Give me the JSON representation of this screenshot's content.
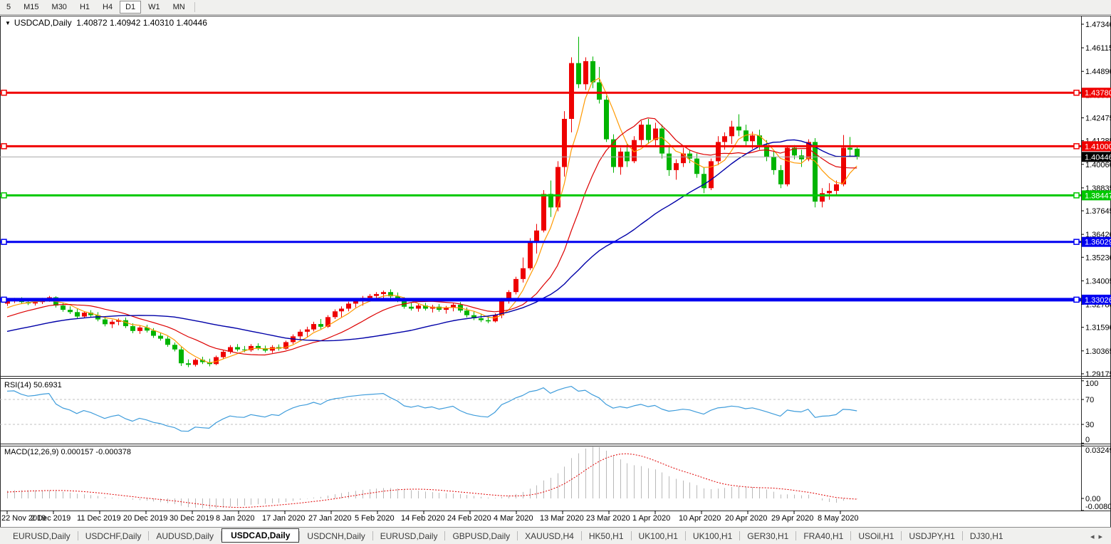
{
  "toolbar": {
    "items": [
      {
        "label": "5",
        "active": false
      },
      {
        "label": "M15",
        "active": false
      },
      {
        "label": "M30",
        "active": false
      },
      {
        "label": "H1",
        "active": false
      },
      {
        "label": "H4",
        "active": false
      },
      {
        "label": "D1",
        "active": true
      },
      {
        "label": "W1",
        "active": false
      },
      {
        "label": "MN",
        "active": false
      }
    ]
  },
  "header": {
    "collapse_icon": "▼",
    "symbol": "USDCAD,Daily",
    "open": "1.40872",
    "high": "1.40942",
    "low": "1.40310",
    "close": "1.40446"
  },
  "indicators": {
    "rsi_label": "RSI(14) 50.6931",
    "macd_label": "MACD(12,26,9) 0.000157 -0.000378"
  },
  "tabbar": {
    "scroll_left": "◂",
    "scroll_right": "▸",
    "tabs": [
      {
        "label": "EURUSD,Daily",
        "active": false
      },
      {
        "label": "USDCHF,Daily",
        "active": false
      },
      {
        "label": "AUDUSD,Daily",
        "active": false
      },
      {
        "label": "USDCAD,Daily",
        "active": true
      },
      {
        "label": "USDCNH,Daily",
        "active": false
      },
      {
        "label": "EURUSD,Daily",
        "active": false
      },
      {
        "label": "GBPUSD,Daily",
        "active": false
      },
      {
        "label": "XAUUSD,H4",
        "active": false
      },
      {
        "label": "HK50,H1",
        "active": false
      },
      {
        "label": "UK100,H1",
        "active": false
      },
      {
        "label": "UK100,H1",
        "active": false
      },
      {
        "label": "GER30,H1",
        "active": false
      },
      {
        "label": "FRA40,H1",
        "active": false
      },
      {
        "label": "USOil,H1",
        "active": false
      },
      {
        "label": "USDJPY,H1",
        "active": false
      },
      {
        "label": "DJ30,H1",
        "active": false
      }
    ]
  },
  "chart_data": {
    "type": "candlestick",
    "symbol": "USDCAD",
    "timeframe": "Daily",
    "colors": {
      "up": "#ee0000",
      "down": "#00b400",
      "ma_fast": "#ff9900",
      "ma_mid": "#dd0000",
      "ma_slow": "#0000a8",
      "rsi_line": "#3e9cdb",
      "macd_hist": "#b9b9b9",
      "macd_signal": "#e00000",
      "frame": "#2b2b2b",
      "current_line": "#a8a8a8",
      "level_dash": "#c0c0c0"
    },
    "price_axis": {
      "ticks": [
        "1.47340",
        "1.46115",
        "1.44890",
        "1.43665",
        "1.42475",
        "1.41285",
        "1.40060",
        "1.38835",
        "1.37645",
        "1.36420",
        "1.35230",
        "1.34005",
        "1.32780",
        "1.31590",
        "1.30365",
        "1.29175"
      ],
      "top_price": 1.47784,
      "bottom_price": 1.29066
    },
    "h_lines": [
      {
        "label": "1.43780",
        "price": 1.4378,
        "color": "#f00000",
        "width": 3
      },
      {
        "label": "1.41000",
        "price": 1.41,
        "color": "#f00000",
        "width": 3
      },
      {
        "label": "1.38447",
        "price": 1.38447,
        "color": "#00c800",
        "width": 3
      },
      {
        "label": "1.36029",
        "price": 1.36029,
        "color": "#0000f0",
        "width": 3
      },
      {
        "label": "1.33026",
        "price": 1.33026,
        "color": "#0000f0",
        "width": 5
      }
    ],
    "current_price": {
      "label": "1.40446",
      "price": 1.40446
    },
    "date_ticks": [
      "22 Nov 2019",
      "2 Dec 2019",
      "11 Dec 2019",
      "20 Dec 2019",
      "30 Dec 2019",
      "8 Jan 2020",
      "17 Jan 2020",
      "27 Jan 2020",
      "5 Feb 2020",
      "14 Feb 2020",
      "24 Feb 2020",
      "4 Mar 2020",
      "13 Mar 2020",
      "23 Mar 2020",
      "1 Apr 2020",
      "10 Apr 2020",
      "20 Apr 2020",
      "29 Apr 2020",
      "8 May 2020"
    ],
    "moving_averages": [
      {
        "period": 5,
        "color": "#ff9900",
        "width": 1.2
      },
      {
        "period": 13,
        "color": "#dd0000",
        "width": 1.2
      },
      {
        "period": 34,
        "color": "#0000a8",
        "width": 1.4
      }
    ],
    "rsi": {
      "period": 14,
      "levels": [
        70,
        30
      ],
      "axis_labels": [
        "100",
        "70",
        "30",
        "0"
      ],
      "axis_values": [
        100,
        70,
        30,
        0
      ],
      "current": "50.6931"
    },
    "macd": {
      "fast": 12,
      "slow": 26,
      "signal": 9,
      "axis_labels": [
        "0.032493",
        "0.00",
        "-0.008086"
      ],
      "axis_values": [
        0.032493,
        0,
        -0.008086
      ],
      "current_main": "0.000157",
      "current_signal": "-0.000378"
    },
    "pre_closes": [
      1.304,
      1.3028,
      1.3035,
      1.3046,
      1.303,
      1.3022,
      1.3038,
      1.305,
      1.3042,
      1.303,
      1.3025,
      1.304,
      1.3052,
      1.3038,
      1.3028,
      1.3045,
      1.3035,
      1.3026,
      1.304,
      1.3055,
      1.3042,
      1.303,
      1.3048,
      1.3036,
      1.3028,
      1.3044,
      1.3052,
      1.304,
      1.3032,
      1.3045,
      1.3038,
      1.305,
      1.306,
      1.3048,
      1.3042,
      1.307,
      1.3095,
      1.311,
      1.3098,
      1.3122,
      1.3135,
      1.312,
      1.3108,
      1.313,
      1.3145,
      1.3132,
      1.315,
      1.3138,
      1.3155,
      1.3148,
      1.316,
      1.3175,
      1.319,
      1.3205,
      1.3215,
      1.3228,
      1.3238,
      1.3248,
      1.3256,
      1.3262
    ],
    "candles": [
      [
        1.3282,
        1.3305,
        1.327,
        1.3297
      ],
      [
        1.3297,
        1.3312,
        1.3285,
        1.3302
      ],
      [
        1.3302,
        1.3315,
        1.3282,
        1.329
      ],
      [
        1.329,
        1.3302,
        1.3275,
        1.3283
      ],
      [
        1.3283,
        1.3296,
        1.3272,
        1.329
      ],
      [
        1.329,
        1.3312,
        1.328,
        1.3306
      ],
      [
        1.3306,
        1.3322,
        1.3292,
        1.3315
      ],
      [
        1.3315,
        1.332,
        1.3262,
        1.3272
      ],
      [
        1.3272,
        1.3288,
        1.324,
        1.325
      ],
      [
        1.325,
        1.3268,
        1.3228,
        1.3238
      ],
      [
        1.3238,
        1.3255,
        1.3205,
        1.3215
      ],
      [
        1.3215,
        1.3242,
        1.3208,
        1.3235
      ],
      [
        1.3235,
        1.3248,
        1.3212,
        1.3222
      ],
      [
        1.3222,
        1.3238,
        1.319,
        1.32
      ],
      [
        1.32,
        1.3215,
        1.3164,
        1.3175
      ],
      [
        1.3175,
        1.3198,
        1.3155,
        1.3188
      ],
      [
        1.3188,
        1.3205,
        1.317,
        1.3196
      ],
      [
        1.3196,
        1.321,
        1.3155,
        1.3165
      ],
      [
        1.3165,
        1.318,
        1.3128,
        1.314
      ],
      [
        1.314,
        1.3168,
        1.3125,
        1.3158
      ],
      [
        1.3158,
        1.3172,
        1.3132,
        1.3142
      ],
      [
        1.3142,
        1.3155,
        1.3104,
        1.3115
      ],
      [
        1.3115,
        1.3132,
        1.309,
        1.31
      ],
      [
        1.31,
        1.3112,
        1.3058,
        1.3068
      ],
      [
        1.3068,
        1.308,
        1.3034,
        1.3044
      ],
      [
        1.3044,
        1.3056,
        1.2958,
        1.2972
      ],
      [
        1.2972,
        1.2992,
        1.2952,
        1.2964
      ],
      [
        1.2964,
        1.2998,
        1.2955,
        1.299
      ],
      [
        1.299,
        1.3006,
        1.2968,
        1.2978
      ],
      [
        1.2978,
        1.2996,
        1.2956,
        1.2968
      ],
      [
        1.2968,
        1.3012,
        1.2962,
        1.3004
      ],
      [
        1.3004,
        1.3042,
        1.2994,
        1.3032
      ],
      [
        1.3032,
        1.3066,
        1.3022,
        1.3056
      ],
      [
        1.3056,
        1.3072,
        1.3034,
        1.3044
      ],
      [
        1.3044,
        1.3062,
        1.303,
        1.304
      ],
      [
        1.304,
        1.3072,
        1.3032,
        1.3062
      ],
      [
        1.3062,
        1.3076,
        1.304,
        1.305
      ],
      [
        1.305,
        1.3064,
        1.3028,
        1.3038
      ],
      [
        1.3038,
        1.3066,
        1.3026,
        1.3056
      ],
      [
        1.3056,
        1.307,
        1.3038,
        1.3048
      ],
      [
        1.3048,
        1.309,
        1.3042,
        1.3082
      ],
      [
        1.3082,
        1.3122,
        1.3072,
        1.3112
      ],
      [
        1.3112,
        1.3148,
        1.3096,
        1.3136
      ],
      [
        1.3136,
        1.3162,
        1.311,
        1.3148
      ],
      [
        1.3148,
        1.3188,
        1.3138,
        1.3176
      ],
      [
        1.3176,
        1.3202,
        1.315,
        1.3162
      ],
      [
        1.3162,
        1.3222,
        1.3156,
        1.3212
      ],
      [
        1.3212,
        1.3252,
        1.3202,
        1.3242
      ],
      [
        1.3242,
        1.3268,
        1.3212,
        1.3256
      ],
      [
        1.3256,
        1.3292,
        1.3242,
        1.3282
      ],
      [
        1.3282,
        1.3306,
        1.3262,
        1.3296
      ],
      [
        1.3296,
        1.3322,
        1.3272,
        1.3312
      ],
      [
        1.3312,
        1.3332,
        1.3292,
        1.3322
      ],
      [
        1.3322,
        1.3342,
        1.3296,
        1.3332
      ],
      [
        1.3332,
        1.335,
        1.3306,
        1.3342
      ],
      [
        1.3342,
        1.3356,
        1.331,
        1.332
      ],
      [
        1.332,
        1.334,
        1.329,
        1.33
      ],
      [
        1.33,
        1.3316,
        1.3256,
        1.3266
      ],
      [
        1.3266,
        1.3286,
        1.3246,
        1.3256
      ],
      [
        1.3256,
        1.328,
        1.324,
        1.3272
      ],
      [
        1.3272,
        1.3286,
        1.3246,
        1.3256
      ],
      [
        1.3256,
        1.3276,
        1.3236,
        1.3266
      ],
      [
        1.3266,
        1.328,
        1.324,
        1.325
      ],
      [
        1.325,
        1.327,
        1.323,
        1.3262
      ],
      [
        1.3262,
        1.3286,
        1.3242,
        1.3276
      ],
      [
        1.3276,
        1.329,
        1.3236,
        1.3246
      ],
      [
        1.3246,
        1.3262,
        1.321,
        1.3222
      ],
      [
        1.3222,
        1.3242,
        1.3196,
        1.3206
      ],
      [
        1.3206,
        1.323,
        1.3186,
        1.3196
      ],
      [
        1.3196,
        1.3216,
        1.318,
        1.319
      ],
      [
        1.319,
        1.3232,
        1.3184,
        1.3222
      ],
      [
        1.3222,
        1.3312,
        1.3206,
        1.33
      ],
      [
        1.33,
        1.3352,
        1.3282,
        1.3342
      ],
      [
        1.3342,
        1.3422,
        1.333,
        1.341
      ],
      [
        1.341,
        1.3522,
        1.3392,
        1.3466
      ],
      [
        1.3466,
        1.3622,
        1.3456,
        1.3602
      ],
      [
        1.3602,
        1.3696,
        1.3542,
        1.3662
      ],
      [
        1.3662,
        1.3872,
        1.3652,
        1.3852
      ],
      [
        1.3852,
        1.3922,
        1.3732,
        1.3782
      ],
      [
        1.3782,
        1.4022,
        1.3762,
        1.3992
      ],
      [
        1.3992,
        1.4282,
        1.3942,
        1.4242
      ],
      [
        1.4242,
        1.4562,
        1.4172,
        1.4532
      ],
      [
        1.4532,
        1.4669,
        1.4402,
        1.4422
      ],
      [
        1.4422,
        1.4562,
        1.4392,
        1.4542
      ],
      [
        1.4542,
        1.4566,
        1.4402,
        1.4432
      ],
      [
        1.4432,
        1.4512,
        1.4322,
        1.4342
      ],
      [
        1.4342,
        1.4362,
        1.4122,
        1.4136
      ],
      [
        1.4136,
        1.4162,
        1.3962,
        1.3992
      ],
      [
        1.3992,
        1.4092,
        1.3952,
        1.4072
      ],
      [
        1.4072,
        1.4112,
        1.3992,
        1.4022
      ],
      [
        1.4022,
        1.4152,
        1.4012,
        1.4132
      ],
      [
        1.4132,
        1.4232,
        1.4106,
        1.4212
      ],
      [
        1.4212,
        1.4242,
        1.4112,
        1.4132
      ],
      [
        1.4132,
        1.4222,
        1.4102,
        1.4192
      ],
      [
        1.4192,
        1.4212,
        1.4036,
        1.4062
      ],
      [
        1.4062,
        1.4102,
        1.3946,
        1.3976
      ],
      [
        1.3976,
        1.4032,
        1.3926,
        1.4012
      ],
      [
        1.4012,
        1.4092,
        1.3992,
        1.4062
      ],
      [
        1.4062,
        1.4082,
        1.4012,
        1.4036
      ],
      [
        1.4036,
        1.4062,
        1.3936,
        1.3956
      ],
      [
        1.3956,
        1.3992,
        1.3856,
        1.3882
      ],
      [
        1.3882,
        1.4036,
        1.3872,
        1.4022
      ],
      [
        1.4022,
        1.4152,
        1.4002,
        1.4122
      ],
      [
        1.4122,
        1.4172,
        1.4082,
        1.4152
      ],
      [
        1.4152,
        1.4232,
        1.4112,
        1.4202
      ],
      [
        1.4202,
        1.4266,
        1.4152,
        1.4182
      ],
      [
        1.4182,
        1.4212,
        1.4102,
        1.4126
      ],
      [
        1.4126,
        1.4176,
        1.4086,
        1.4156
      ],
      [
        1.4156,
        1.4186,
        1.4082,
        1.4106
      ],
      [
        1.4106,
        1.4132,
        1.4022,
        1.4046
      ],
      [
        1.4046,
        1.4072,
        1.3952,
        1.3976
      ],
      [
        1.3976,
        1.4002,
        1.3882,
        1.3902
      ],
      [
        1.3902,
        1.4102,
        1.3892,
        1.4092
      ],
      [
        1.4092,
        1.4106,
        1.4032,
        1.4052
      ],
      [
        1.4052,
        1.4082,
        1.3992,
        1.4032
      ],
      [
        1.4032,
        1.4136,
        1.4022,
        1.4122
      ],
      [
        1.4122,
        1.4142,
        1.3782,
        1.3812
      ],
      [
        1.3812,
        1.3882,
        1.3782,
        1.3856
      ],
      [
        1.3856,
        1.3908,
        1.3822,
        1.3868
      ],
      [
        1.3868,
        1.3922,
        1.3846,
        1.3902
      ],
      [
        1.3902,
        1.4158,
        1.3892,
        1.4092
      ],
      [
        1.4092,
        1.4148,
        1.4042,
        1.4082
      ],
      [
        1.40872,
        1.40942,
        1.4031,
        1.40446
      ]
    ]
  }
}
